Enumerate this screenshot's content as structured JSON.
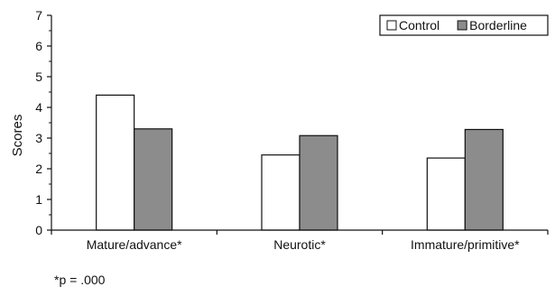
{
  "chart_data": {
    "type": "bar",
    "categories": [
      "Mature/advance*",
      "Neurotic*",
      "Immature/primitive*"
    ],
    "series": [
      {
        "name": "Control",
        "values": [
          4.4,
          2.45,
          2.35
        ],
        "color": "#ffffff"
      },
      {
        "name": "Borderline",
        "values": [
          3.3,
          3.08,
          3.28
        ],
        "color": "#8c8c8c"
      }
    ],
    "ylabel": "Scores",
    "xlabel": "",
    "ylim": [
      0,
      7
    ],
    "yticks": [
      "0",
      "1",
      "2",
      "3",
      "4",
      "5",
      "6",
      "7"
    ],
    "legend_position": "top-right",
    "grid": false
  },
  "footnote": "*p = .000"
}
